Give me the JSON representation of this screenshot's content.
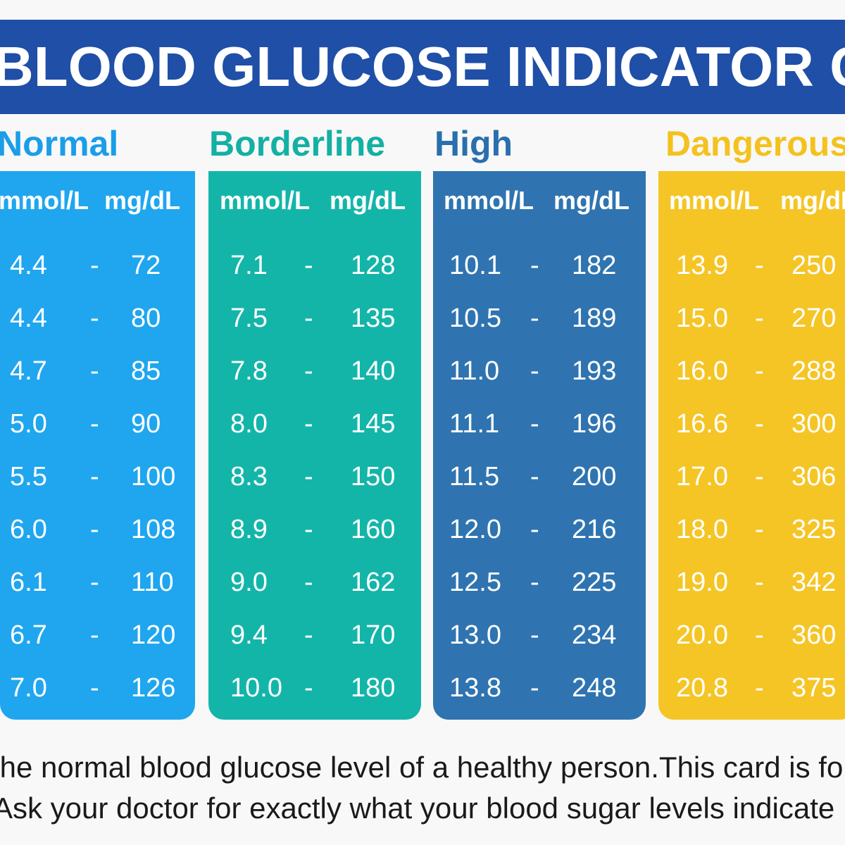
{
  "title": "BLOOD GLUCOSE INDICATOR CARD",
  "colors": {
    "banner": "#1f4fa6",
    "normal": "#1fa6ef",
    "borderline": "#14b5a9",
    "high": "#2f74b0",
    "dangerous": "#f5c526",
    "normal_label": "#1a9ee8",
    "borderline_label": "#14b0a4",
    "high_label": "#2a6fad",
    "dangerous_label": "#f4c21e"
  },
  "units": {
    "mmol": "mmol/L",
    "mgdl": "mg/dL",
    "separator": "-"
  },
  "categories": [
    {
      "label": "Normal",
      "rows": [
        [
          "4.4",
          "72"
        ],
        [
          "4.4",
          "80"
        ],
        [
          "4.7",
          "85"
        ],
        [
          "5.0",
          "90"
        ],
        [
          "5.5",
          "100"
        ],
        [
          "6.0",
          "108"
        ],
        [
          "6.1",
          "110"
        ],
        [
          "6.7",
          "120"
        ],
        [
          "7.0",
          "126"
        ]
      ]
    },
    {
      "label": "Borderline",
      "rows": [
        [
          "7.1",
          "128"
        ],
        [
          "7.5",
          "135"
        ],
        [
          "7.8",
          "140"
        ],
        [
          "8.0",
          "145"
        ],
        [
          "8.3",
          "150"
        ],
        [
          "8.9",
          "160"
        ],
        [
          "9.0",
          "162"
        ],
        [
          "9.4",
          "170"
        ],
        [
          "10.0",
          "180"
        ]
      ]
    },
    {
      "label": "High",
      "rows": [
        [
          "10.1",
          "182"
        ],
        [
          "10.5",
          "189"
        ],
        [
          "11.0",
          "193"
        ],
        [
          "11.1",
          "196"
        ],
        [
          "11.5",
          "200"
        ],
        [
          "12.0",
          "216"
        ],
        [
          "12.5",
          "225"
        ],
        [
          "13.0",
          "234"
        ],
        [
          "13.8",
          "248"
        ]
      ]
    },
    {
      "label": "Dangerous",
      "rows": [
        [
          "13.9",
          "250"
        ],
        [
          "15.0",
          "270"
        ],
        [
          "16.0",
          "288"
        ],
        [
          "16.6",
          "300"
        ],
        [
          "17.0",
          "306"
        ],
        [
          "18.0",
          "325"
        ],
        [
          "19.0",
          "342"
        ],
        [
          "20.0",
          "360"
        ],
        [
          "20.8",
          "375"
        ]
      ]
    }
  ],
  "footer": {
    "line1": "The normal blood glucose level of a healthy person.This card is fo",
    "line2": "Ask your doctor for exactly what your blood sugar levels indicate"
  }
}
